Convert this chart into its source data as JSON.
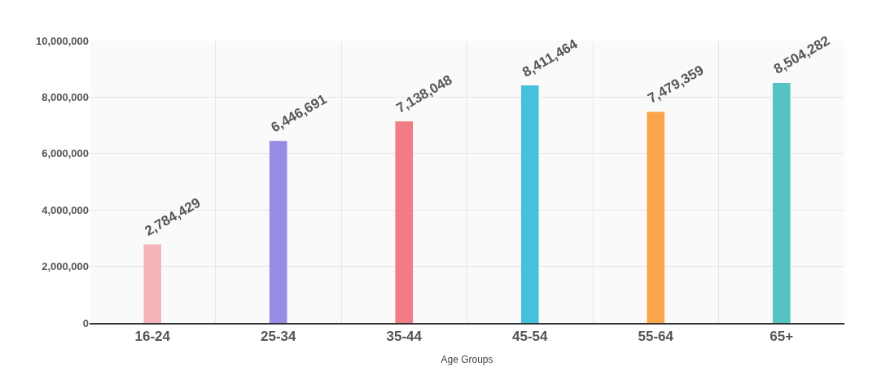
{
  "chart_data": {
    "type": "bar",
    "xlabel": "Age Groups",
    "categories": [
      "16-24",
      "25-34",
      "35-44",
      "45-54",
      "55-64",
      "65+"
    ],
    "values": [
      2784429,
      6446691,
      7138048,
      8411464,
      7479359,
      8504282
    ],
    "colors": [
      "#f5b5ba",
      "#958ce6",
      "#f17c86",
      "#45c1dd",
      "#fba54d",
      "#55c3c3"
    ],
    "ylim": [
      0,
      10000000
    ],
    "yticks": [
      {
        "value": 0,
        "label": "0"
      },
      {
        "value": 2000000,
        "label": "2,000,000"
      },
      {
        "value": 4000000,
        "label": "4,000,000"
      },
      {
        "value": 6000000,
        "label": "6,000,000"
      },
      {
        "value": 8000000,
        "label": "8,000,000"
      },
      {
        "value": 10000000,
        "label": "10,000,000"
      }
    ],
    "value_labels": [
      "2,784,429",
      "6,446,691",
      "7,138,048",
      "8,411,464",
      "7,479,359",
      "8,504,282"
    ],
    "grid": true
  }
}
